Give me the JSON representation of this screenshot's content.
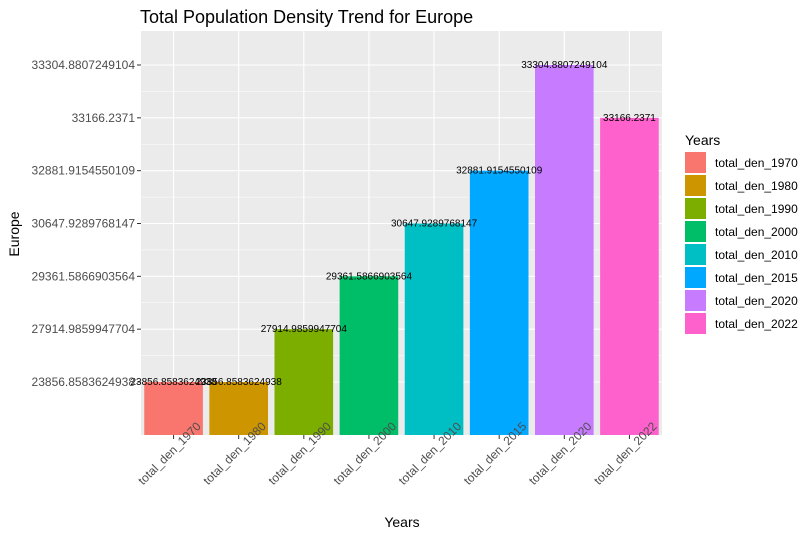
{
  "chart_data": {
    "type": "bar",
    "title": "Total Population Density Trend for Europe",
    "xlabel": "Years",
    "ylabel": "Europe",
    "y_scale": "discrete",
    "categories": [
      "total_den_1970",
      "total_den_1980",
      "total_den_1990",
      "total_den_2000",
      "total_den_2010",
      "total_den_2015",
      "total_den_2020",
      "total_den_2022"
    ],
    "values": [
      23856.8583624938,
      23856.8583624938,
      27914.9859947704,
      29361.5866903564,
      30647.9289768147,
      32881.9154550109,
      33304.8807249104,
      33166.2371
    ],
    "value_labels": [
      "23856.8583624938",
      "23856.8583624938",
      "27914.9859947704",
      "29361.5866903564",
      "30647.9289768147",
      "32881.9154550109",
      "33304.8807249104",
      "33166.2371"
    ],
    "y_ticks": [
      "23856.8583624938",
      "27914.9859947704",
      "29361.5866903564",
      "30647.9289768147",
      "32881.9154550109",
      "33166.2371",
      "33304.8807249104"
    ],
    "colors": [
      "#F8766D",
      "#CD9600",
      "#7CAE00",
      "#00BE67",
      "#00BFC4",
      "#00A9FF",
      "#C77CFF",
      "#FF61CC"
    ],
    "legend": {
      "title": "Years",
      "position": "right",
      "entries": [
        "total_den_1970",
        "total_den_1980",
        "total_den_1990",
        "total_den_2000",
        "total_den_2010",
        "total_den_2015",
        "total_den_2020",
        "total_den_2022"
      ]
    },
    "grid": true,
    "panel_background": "#EBEBEB",
    "grid_color": "#FFFFFF"
  }
}
